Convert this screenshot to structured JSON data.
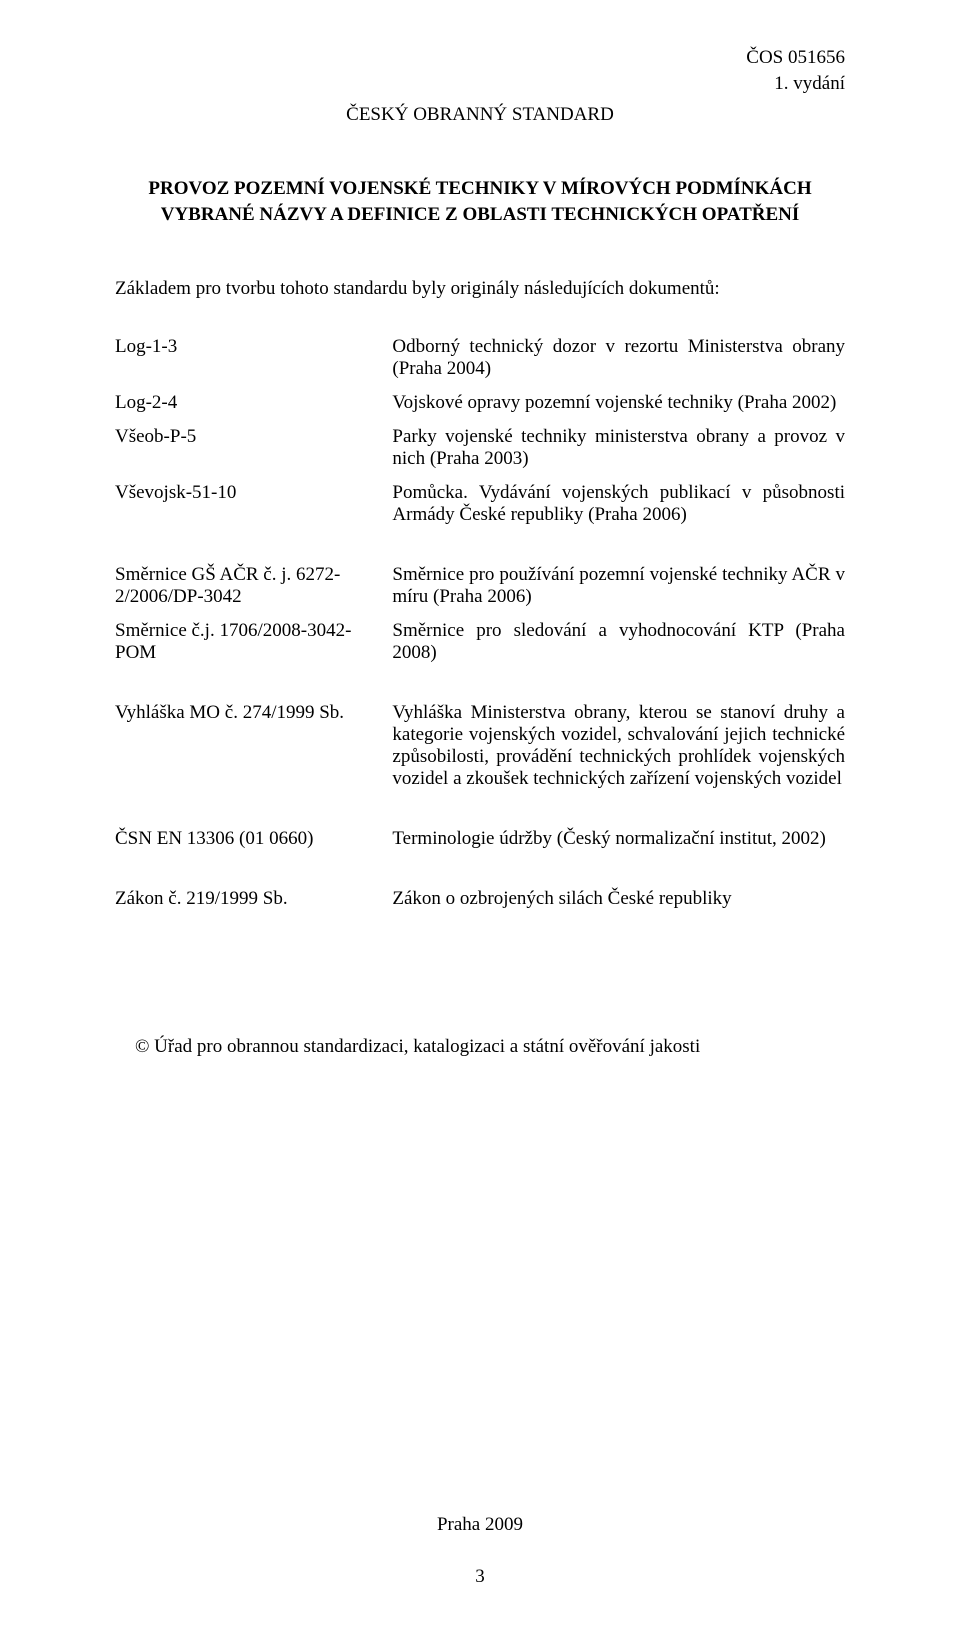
{
  "header": {
    "doc_number": "ČOS 051656",
    "edition": "1. vydání",
    "standard_name": "ČESKÝ OBRANNÝ STANDARD"
  },
  "subtitle": {
    "line1": "PROVOZ POZEMNÍ VOJENSKÉ TECHNIKY V MÍROVÝCH PODMÍNKÁCH",
    "line2": "VYBRANÉ NÁZVY A DEFINICE Z OBLASTI TECHNICKÝCH OPATŘENÍ"
  },
  "intro_text": "Základem pro tvorbu tohoto standardu byly originály následujících dokumentů:",
  "refs_group1": [
    {
      "left": "Log-1-3",
      "right": "Odborný technický dozor v rezortu Ministerstva obrany (Praha 2004)"
    },
    {
      "left": "Log-2-4",
      "right": "Vojskové opravy pozemní vojenské techniky (Praha 2002)"
    },
    {
      "left": "Všeob-P-5",
      "right": "Parky vojenské techniky ministerstva obrany a provoz v nich (Praha 2003)"
    },
    {
      "left": "Vševojsk-51-10",
      "right": "Pomůcka. Vydávání vojenských publikací v působnosti Armády České republiky (Praha 2006)"
    }
  ],
  "refs_group2": [
    {
      "left": "Směrnice GŠ AČR č. j. 6272-2/2006/DP-3042",
      "right": "Směrnice pro používání pozemní vojenské techniky AČR v míru (Praha 2006)"
    },
    {
      "left": "Směrnice č.j. 1706/2008-3042-POM",
      "right": "Směrnice pro sledování a vyhodnocování KTP (Praha 2008)"
    }
  ],
  "refs_group3": [
    {
      "left": "Vyhláška MO č. 274/1999 Sb.",
      "right": "Vyhláška Ministerstva obrany, kterou se stanoví druhy a kategorie vojenských vozidel, schvalování jejich technické způsobilosti, provádění technických prohlídek vojenských vozidel a zkoušek technických zařízení vojenských vozidel"
    }
  ],
  "refs_group4": [
    {
      "left": "ČSN EN 13306 (01 0660)",
      "right": "Terminologie údržby (Český normalizační institut, 2002)"
    }
  ],
  "refs_group5": [
    {
      "left": "Zákon č. 219/1999 Sb.",
      "right": "Zákon o ozbrojených silách České republiky"
    }
  ],
  "copyright": "© Úřad pro obrannou standardizaci, katalogizaci a státní ověřování jakosti",
  "footer": {
    "place_year": "Praha 2009",
    "page_number": "3"
  }
}
